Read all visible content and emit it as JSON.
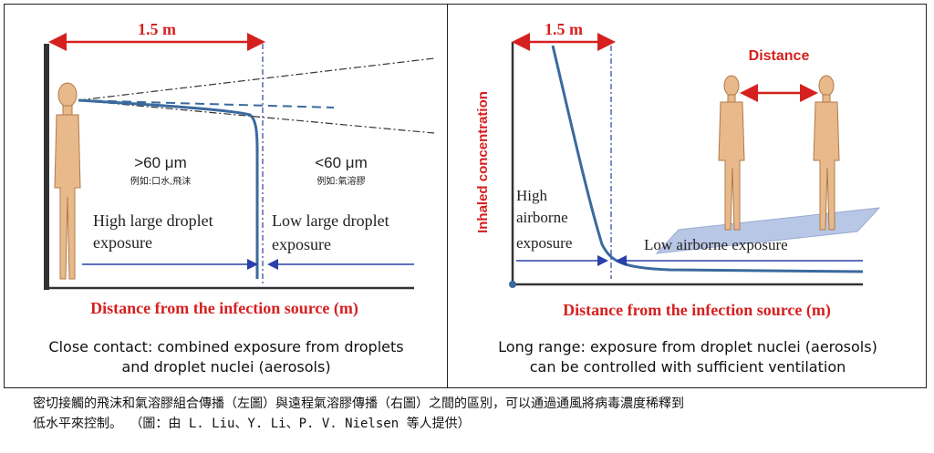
{
  "left_panel": {
    "distance_label": "1.5 m",
    "gt_size": ">60 μm",
    "gt_example": "例如:口水,飛沫",
    "lt_size": "<60 μm",
    "lt_example": "例如:氣溶膠",
    "high_exposure_line1": "High large droplet",
    "high_exposure_line2": "exposure",
    "low_exposure_line1": "Low large droplet",
    "low_exposure_line2": "exposure",
    "xaxis_label": "Distance from the infection source (m)",
    "caption_line1": "Close contact: combined exposure from droplets",
    "caption_line2": "and droplet nuclei (aerosols)"
  },
  "right_panel": {
    "distance_label": "1.5 m",
    "people_label": "Distance",
    "yaxis_label": "Inhaled concentration",
    "high_line1": "High",
    "high_line2": "airborne",
    "high_line3": "exposure",
    "low_exposure": "Low airborne exposure",
    "xaxis_label": "Distance from the infection source (m)",
    "caption_line1": "Long range: exposure from droplet nuclei (aerosols)",
    "caption_line2": "can be controlled with sufficient ventilation"
  },
  "footnote": {
    "line1": "密切接觸的飛沫和氣溶膠組合傳播（左圖）與遠程氣溶膠傳播（右圖）之間的區別，可以通過通風將病毒濃度稀釋到",
    "line2": "低水平來控制。 （圖：由 L. Liu、Y. Li、P. V. Nielsen 等人提供）"
  },
  "colors": {
    "red": "#d62020",
    "blue_curve": "#3a6a9e",
    "arrow_blue": "#2a3fa8",
    "skin": "#e8b98a",
    "floor": "#b9c7e6"
  }
}
